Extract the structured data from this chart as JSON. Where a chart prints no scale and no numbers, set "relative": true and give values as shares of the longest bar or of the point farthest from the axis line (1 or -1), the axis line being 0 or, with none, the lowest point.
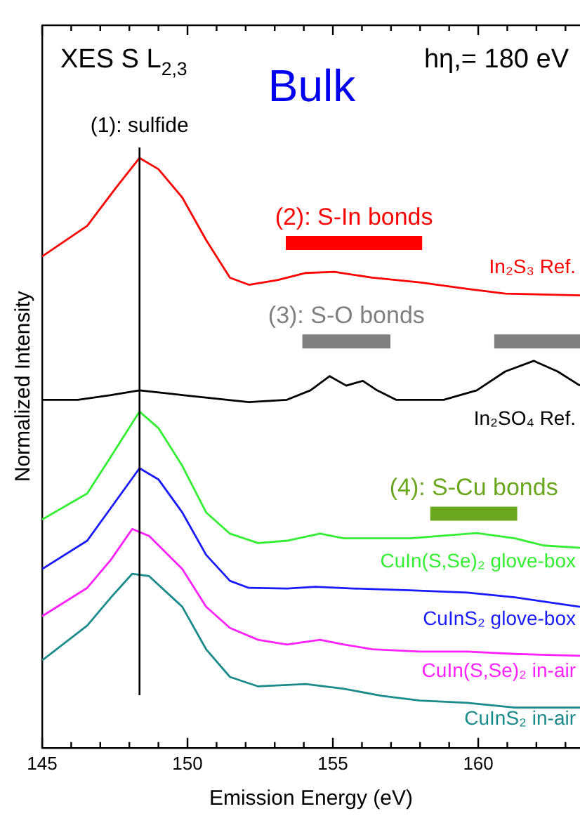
{
  "chart_data": {
    "type": "line",
    "relative": true,
    "title": "XES S L$_{2,3}$",
    "subtitle": "Bulk",
    "annotations": [
      "hη,= 180 eV",
      {
        "text": "(2): S-In bonds",
        "x": 155.725,
        "y": 0.856
      },
      {
        "text": "(3): S-O bonds",
        "x": 155.465,
        "y": 0.689
      },
      {
        "text": "(4): S-Cu bonds",
        "x": 159.845,
        "y": 0.397
      }
    ],
    "xlabel": "Emission Energy (eV)",
    "ylabel": "Normalized Intensity",
    "xlim": [
      145,
      163.5
    ],
    "xticks": [
      145,
      {
        "value": 146,
        "label": null
      },
      {
        "value": 147,
        "label": null
      },
      {
        "value": 148,
        "label": null
      },
      {
        "value": 149,
        "label": null
      },
      150,
      {
        "value": 151,
        "label": null
      },
      {
        "value": 152,
        "label": null
      },
      {
        "value": 153,
        "label": null
      },
      {
        "value": 154,
        "label": null
      },
      155,
      {
        "value": 156,
        "label": null
      },
      {
        "value": 157,
        "label": null
      },
      {
        "value": 158,
        "label": null
      },
      {
        "value": 159,
        "label": null
      },
      160,
      {
        "value": 161,
        "label": null
      },
      {
        "value": 162,
        "label": null
      },
      {
        "value": 163,
        "label": null
      }
    ],
    "grid": false,
    "legend": false,
    "series": [
      {
        "name": "In₂S₃ Ref.",
        "color": "#ff0000",
        "x": [
          145,
          146.55,
          147.53,
          148.35,
          149.0,
          149.82,
          150.64,
          151.46,
          152.11,
          153.09,
          154.07,
          155.05,
          156.36,
          157.99,
          159.62,
          160.93,
          163.5
        ],
        "values": [
          0.833,
          0.885,
          0.949,
          1.0,
          0.981,
          0.933,
          0.861,
          0.797,
          0.785,
          0.793,
          0.805,
          0.807,
          0.797,
          0.789,
          0.778,
          0.77,
          0.767
        ]
      },
      {
        "name": "In₂SO₄ Ref.",
        "color": "#000000",
        "x": [
          145,
          146.23,
          147.37,
          148.35,
          149.82,
          152.11,
          153.42,
          154.23,
          154.89,
          155.46,
          156.03,
          156.52,
          157.17,
          158.81,
          159.95,
          160.93,
          161.91,
          162.73,
          163.5
        ],
        "values": [
          0.59,
          0.59,
          0.598,
          0.606,
          0.598,
          0.586,
          0.59,
          0.606,
          0.63,
          0.614,
          0.622,
          0.606,
          0.59,
          0.59,
          0.606,
          0.638,
          0.656,
          0.638,
          0.614
        ]
      },
      {
        "name": "CuIn(S,Se)₂ glove-box",
        "color": "#33ee33",
        "x": [
          145,
          146.55,
          147.37,
          148.35,
          149.0,
          149.82,
          150.64,
          151.46,
          152.43,
          153.42,
          154.56,
          155.38,
          156.36,
          157.66,
          158.64,
          159.95,
          161.26,
          162.24,
          163.5
        ],
        "values": [
          0.387,
          0.431,
          0.494,
          0.57,
          0.542,
          0.478,
          0.399,
          0.363,
          0.347,
          0.351,
          0.363,
          0.355,
          0.355,
          0.355,
          0.359,
          0.364,
          0.355,
          0.343,
          0.339
        ]
      },
      {
        "name": "CuInS₂ glove-box",
        "color": "#1a1aff",
        "x": [
          145,
          146.55,
          147.37,
          148.35,
          149.0,
          149.82,
          150.64,
          151.46,
          152.11,
          153.42,
          154.4,
          155.7,
          157.66,
          159.62,
          161.26,
          163.5
        ],
        "values": [
          0.303,
          0.351,
          0.407,
          0.474,
          0.455,
          0.399,
          0.327,
          0.283,
          0.271,
          0.27,
          0.273,
          0.27,
          0.267,
          0.263,
          0.255,
          0.239
        ]
      },
      {
        "name": "CuIn(S,Se)₂ in-air",
        "color": "#ff22ff",
        "x": [
          145,
          146.55,
          147.37,
          148.1,
          148.68,
          149.82,
          150.64,
          151.46,
          152.43,
          153.42,
          154.56,
          155.38,
          156.36,
          157.99,
          159.62,
          161.26,
          163.5
        ],
        "values": [
          0.223,
          0.271,
          0.319,
          0.371,
          0.359,
          0.303,
          0.239,
          0.203,
          0.183,
          0.175,
          0.183,
          0.175,
          0.167,
          0.163,
          0.163,
          0.159,
          0.156
        ]
      },
      {
        "name": "CuInS₂ in-air",
        "color": "#1a8a8a",
        "x": [
          145,
          146.55,
          147.37,
          148.1,
          148.68,
          149.82,
          150.64,
          151.46,
          152.43,
          154.07,
          155.38,
          156.68,
          157.99,
          159.62,
          161.26,
          163.5
        ],
        "values": [
          0.148,
          0.207,
          0.255,
          0.295,
          0.291,
          0.239,
          0.167,
          0.12,
          0.104,
          0.108,
          0.1,
          0.088,
          0.08,
          0.076,
          0.068,
          0.068
        ]
      },
      {
        "color": "#ff0000",
        "x": [
          153.38,
          158.07
        ],
        "values": [
          0.856,
          0.856
        ]
      },
      {
        "color": "#808080",
        "x": [
          153.95,
          156.98
        ],
        "values": [
          0.689,
          0.689
        ]
      },
      {
        "color": "#808080",
        "x": [
          160.55,
          163.5
        ],
        "values": [
          0.689,
          0.689
        ]
      },
      {
        "color": "#6aa61e",
        "x": [
          158.35,
          161.34
        ],
        "values": [
          0.397,
          0.397
        ]
      }
    ],
    "ref_lines": [
      {
        "axis": "x",
        "value": 148.35,
        "label": "(1): sulfide",
        "color": "#000000"
      }
    ]
  }
}
